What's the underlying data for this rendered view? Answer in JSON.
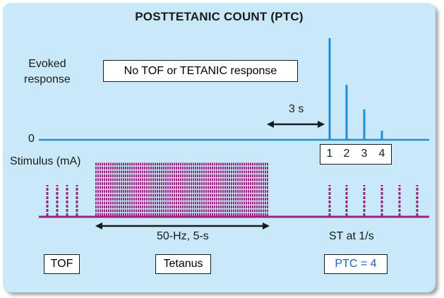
{
  "title": "POSTTETANIC COUNT (PTC)",
  "labels": {
    "evoked_line1": "Evoked",
    "evoked_line2": "response",
    "zero": "0",
    "stimulus": "Stimulus (mA)",
    "no_response": "No TOF or TETANIC response",
    "delay": "3 s",
    "tetanus_duration": "50-Hz, 5-s",
    "stimulation_rate": "ST at 1/s"
  },
  "response_counts": [
    "1",
    "2",
    "3",
    "4"
  ],
  "response_heights_relative": [
    1.0,
    0.54,
    0.3,
    0.09
  ],
  "legend_boxes": {
    "tof": "TOF",
    "tetanus": "Tetanus",
    "ptc": "PTC = 4"
  },
  "colors": {
    "background": "#c9e9f8",
    "response_trace": "#1f8fd4",
    "stimulus_trace": "#9b2480",
    "ptc_text": "#1f5fae"
  }
}
